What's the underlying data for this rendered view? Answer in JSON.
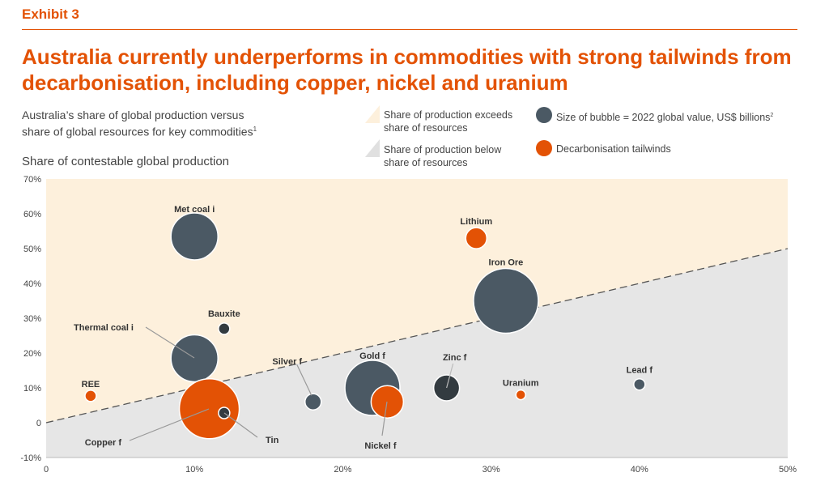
{
  "header": {
    "exhibit": "Exhibit 3",
    "title": "Australia currently underperforms in commodities with strong tailwinds from decarbonisation, including copper, nickel and uranium",
    "subtitle_line1": "Australia’s share of global production versus",
    "subtitle_line2": "share of global resources for key commodities",
    "subtitle_sup": "1"
  },
  "legend": {
    "above": "Share of production exceeds share of resources",
    "below": "Share of production below share of resources",
    "size": "Size of bubble = 2022 global value, US$ billions",
    "size_sup": "2",
    "decarb": "Decarbonisation tailwinds"
  },
  "colors": {
    "accent": "#e35205",
    "bubble": "#4b5964",
    "dark": "#333b40",
    "above_fill": "#fdf0dc",
    "below_fill": "#e6e6e6"
  },
  "chart_data": {
    "type": "scatter",
    "subtype": "bubble",
    "ylabel": "Share of contestable global production",
    "xlim": [
      0,
      50
    ],
    "ylim": [
      -10,
      70
    ],
    "x_ticks": [
      "0",
      "10%",
      "20%",
      "30%",
      "40%",
      "50%"
    ],
    "y_ticks": [
      "-10%",
      "0",
      "10%",
      "20%",
      "30%",
      "40%",
      "50%",
      "60%",
      "70%"
    ],
    "reference_line": {
      "style": "dashed",
      "from": [
        0,
        0
      ],
      "to": [
        50,
        50
      ]
    },
    "points": [
      {
        "label": "Met coal i",
        "x": 10,
        "y": 53.5,
        "size": 29,
        "category": "standard"
      },
      {
        "label": "Lithium",
        "x": 29,
        "y": 53,
        "size": 13,
        "category": "decarb"
      },
      {
        "label": "Iron Ore",
        "x": 31,
        "y": 35,
        "size": 40,
        "category": "standard"
      },
      {
        "label": "Bauxite",
        "x": 12,
        "y": 27,
        "size": 7,
        "category": "dark"
      },
      {
        "label": "Thermal coal i",
        "x": 10,
        "y": 18.5,
        "size": 29,
        "category": "standard"
      },
      {
        "label": "REE",
        "x": 3,
        "y": 7.7,
        "size": 7,
        "category": "decarb"
      },
      {
        "label": "Copper f",
        "x": 11,
        "y": 4,
        "size": 37,
        "category": "decarb"
      },
      {
        "label": "Tin",
        "x": 12,
        "y": 2.8,
        "size": 7,
        "category": "dark"
      },
      {
        "label": "Silver f",
        "x": 18,
        "y": 6,
        "size": 10,
        "category": "standard"
      },
      {
        "label": "Gold f",
        "x": 22,
        "y": 10,
        "size": 34,
        "category": "standard"
      },
      {
        "label": "Nickel f",
        "x": 23,
        "y": 6,
        "size": 20,
        "category": "decarb"
      },
      {
        "label": "Zinc f",
        "x": 27,
        "y": 10,
        "size": 16,
        "category": "dark"
      },
      {
        "label": "Uranium",
        "x": 32,
        "y": 8,
        "size": 6,
        "category": "decarb"
      },
      {
        "label": "Lead f",
        "x": 40,
        "y": 11,
        "size": 7,
        "category": "standard"
      }
    ]
  }
}
